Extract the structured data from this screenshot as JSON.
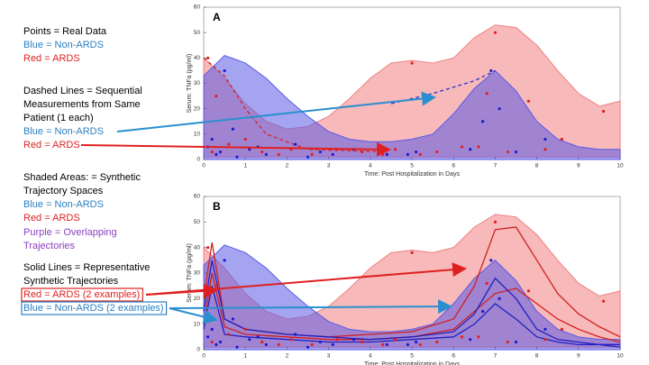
{
  "notes": [
    {
      "text": "Points = Real Data",
      "color": "#000000"
    },
    {
      "text": "Blue = Non-ARDS",
      "color": "#2a7fc1"
    },
    {
      "text": "Red = ARDS",
      "color": "#e02020"
    },
    {
      "text": "Dashed Lines = Sequential",
      "color": "#000000"
    },
    {
      "text": "Measurements from Same",
      "color": "#000000"
    },
    {
      "text": "Patient (1 each)",
      "color": "#000000"
    },
    {
      "text": "Blue = Non-ARDS",
      "color": "#2a7fc1"
    },
    {
      "text": "Red = ARDS",
      "color": "#e02020"
    },
    {
      "text": "Shaded Areas: = Synthetic",
      "color": "#000000"
    },
    {
      "text": "Trajectory Spaces",
      "color": "#000000"
    },
    {
      "text": "Blue = Non-ARDS",
      "color": "#2a7fc1"
    },
    {
      "text": "Red = ARDS",
      "color": "#e02020"
    },
    {
      "text": "Purple = Overlapping",
      "color": "#8a3fbf"
    },
    {
      "text": "Trajectories",
      "color": "#8a3fbf"
    },
    {
      "text": "Solid Lines = Representative",
      "color": "#000000"
    },
    {
      "text": "Synthetic Trajectories",
      "color": "#000000"
    },
    {
      "text": "Red = ARDS (2 examples)",
      "color": "#e02020",
      "boxed": true
    },
    {
      "text": "Blue = Non-ARDS (2 examples)",
      "color": "#2a7fc1",
      "boxed": true
    }
  ],
  "chart_data": [
    {
      "type": "area-scatter",
      "panel_label": "A",
      "xlabel": "Time: Post Hospitalization in Days",
      "ylabel": "Serum: TNFa (pg/ml)",
      "xlim": [
        0,
        10
      ],
      "ylim": [
        0,
        60
      ],
      "xticks": [
        0,
        1,
        2,
        3,
        4,
        5,
        6,
        7,
        8,
        9,
        10
      ],
      "yticks": [
        0,
        10,
        20,
        30,
        40,
        50,
        60
      ],
      "x": [
        0,
        0.5,
        1,
        1.5,
        2,
        2.5,
        3,
        3.5,
        4,
        4.5,
        5,
        5.5,
        6,
        6.5,
        7,
        7.5,
        8,
        8.5,
        9,
        9.5,
        10
      ],
      "areas": [
        {
          "color": "#f08080",
          "upper": [
            40,
            32,
            22,
            15,
            12,
            13,
            17,
            24,
            32,
            38,
            39,
            38,
            40,
            48,
            53,
            52,
            45,
            35,
            26,
            21,
            23
          ],
          "lower": [
            1,
            1,
            1,
            1,
            1,
            1,
            1,
            1,
            1,
            1,
            1,
            1,
            1,
            1,
            1,
            1,
            1,
            1,
            1,
            1,
            1
          ]
        },
        {
          "color": "#5a5ae6",
          "upper": [
            33,
            41,
            38,
            32,
            24,
            17,
            11,
            8,
            7,
            7,
            8,
            10,
            18,
            28,
            35,
            27,
            15,
            8,
            5,
            4,
            4
          ],
          "lower": [
            0,
            0,
            0,
            0,
            0,
            0,
            0,
            0,
            0,
            0,
            0,
            0,
            0,
            0,
            0,
            0,
            0,
            0,
            0,
            0,
            0
          ]
        }
      ],
      "points": [
        {
          "color": "#e02020",
          "x": [
            0.1,
            0.3,
            0.6,
            1.0,
            1.4,
            2.1,
            2.6,
            3.2,
            3.8,
            4.3,
            5.0,
            5.6,
            6.2,
            6.8,
            7.0,
            7.3,
            7.8,
            8.2,
            8.6,
            9.6,
            0.2,
            1.8,
            4.6,
            5.2,
            6.6
          ],
          "y": [
            40,
            25,
            6,
            8,
            3,
            4,
            2,
            4,
            3,
            2,
            38,
            3,
            5,
            26,
            50,
            3,
            23,
            4,
            8,
            19,
            3,
            2,
            4,
            2,
            5
          ]
        },
        {
          "color": "#1a1ad0",
          "x": [
            0.1,
            0.2,
            0.4,
            0.5,
            0.7,
            1.1,
            1.5,
            2.2,
            2.8,
            3.1,
            3.6,
            4.4,
            5.1,
            6.4,
            6.9,
            7.1,
            7.5,
            8.2,
            0.3,
            0.8,
            1.3,
            2.5,
            4.9,
            6.7
          ],
          "y": [
            5,
            8,
            3,
            35,
            12,
            4,
            2,
            6,
            3,
            2,
            4,
            2,
            3,
            4,
            35,
            20,
            3,
            8,
            2,
            1,
            5,
            1,
            2,
            15
          ]
        }
      ],
      "lines": [
        {
          "color": "#3030d0",
          "dashed": true,
          "x": [
            4.5,
            5.5,
            6.5,
            7.0
          ],
          "values": [
            22,
            26,
            31,
            35
          ]
        },
        {
          "color": "#e02020",
          "dashed": true,
          "x": [
            0,
            0.5,
            1,
            1.5,
            2.5,
            4.4
          ],
          "values": [
            40,
            33,
            20,
            10,
            4,
            3
          ]
        }
      ]
    },
    {
      "type": "area-scatter",
      "panel_label": "B",
      "xlabel": "Time: Post Hospitalization in Days",
      "ylabel": "Serum: TNFa (pg/ml)",
      "xlim": [
        0,
        10
      ],
      "ylim": [
        0,
        60
      ],
      "xticks": [
        0,
        1,
        2,
        3,
        4,
        5,
        6,
        7,
        8,
        9,
        10
      ],
      "yticks": [
        0,
        10,
        20,
        30,
        40,
        50,
        60
      ],
      "x": [
        0,
        0.5,
        1,
        1.5,
        2,
        2.5,
        3,
        3.5,
        4,
        4.5,
        5,
        5.5,
        6,
        6.5,
        7,
        7.5,
        8,
        8.5,
        9,
        9.5,
        10
      ],
      "areas": [
        {
          "color": "#f08080",
          "upper": [
            40,
            32,
            22,
            15,
            12,
            13,
            17,
            24,
            32,
            38,
            39,
            38,
            40,
            48,
            53,
            52,
            45,
            35,
            26,
            21,
            23
          ],
          "lower": [
            1,
            1,
            1,
            1,
            1,
            1,
            1,
            1,
            1,
            1,
            1,
            1,
            1,
            1,
            1,
            1,
            1,
            1,
            1,
            1,
            1
          ]
        },
        {
          "color": "#5a5ae6",
          "upper": [
            33,
            41,
            38,
            32,
            24,
            17,
            11,
            8,
            7,
            7,
            8,
            10,
            18,
            28,
            35,
            27,
            15,
            8,
            5,
            4,
            4
          ],
          "lower": [
            0,
            0,
            0,
            0,
            0,
            0,
            0,
            0,
            0,
            0,
            0,
            0,
            0,
            0,
            0,
            0,
            0,
            0,
            0,
            0,
            0
          ]
        }
      ],
      "points": [
        {
          "color": "#e02020",
          "x": [
            0.1,
            0.3,
            0.6,
            1.0,
            1.4,
            2.1,
            2.6,
            3.2,
            3.8,
            4.3,
            5.0,
            5.6,
            6.2,
            6.8,
            7.0,
            7.3,
            7.8,
            8.2,
            8.6,
            9.6,
            0.2,
            1.8,
            4.6,
            5.2,
            6.6
          ],
          "y": [
            40,
            25,
            6,
            8,
            3,
            4,
            2,
            4,
            3,
            2,
            38,
            3,
            5,
            26,
            50,
            3,
            23,
            4,
            8,
            19,
            3,
            2,
            4,
            2,
            5
          ]
        },
        {
          "color": "#1a1ad0",
          "x": [
            0.1,
            0.2,
            0.4,
            0.5,
            0.7,
            1.1,
            1.5,
            2.2,
            2.8,
            3.1,
            3.6,
            4.4,
            5.1,
            6.4,
            6.9,
            7.1,
            7.5,
            8.2,
            0.3,
            0.8,
            1.3,
            2.5,
            4.9,
            6.7
          ],
          "y": [
            5,
            8,
            3,
            35,
            12,
            4,
            2,
            6,
            3,
            2,
            4,
            2,
            3,
            4,
            35,
            20,
            3,
            8,
            2,
            1,
            5,
            1,
            2,
            15
          ]
        }
      ],
      "lines": [
        {
          "color": "#d02020",
          "dashed": false,
          "x": [
            0,
            0.2,
            0.5,
            1,
            2,
            3,
            4,
            5,
            6,
            6.5,
            7,
            7.5,
            8,
            8.5,
            9,
            9.5,
            10
          ],
          "values": [
            20,
            42,
            12,
            8,
            6,
            5,
            6,
            7,
            12,
            25,
            47,
            48,
            35,
            22,
            14,
            9,
            5
          ]
        },
        {
          "color": "#d02020",
          "dashed": false,
          "x": [
            0,
            0.2,
            0.5,
            1,
            2,
            3,
            4,
            5,
            6,
            6.5,
            7,
            7.5,
            8,
            8.5,
            9,
            9.5,
            10
          ],
          "values": [
            10,
            30,
            9,
            6,
            5,
            4,
            4,
            5,
            8,
            15,
            22,
            24,
            18,
            12,
            8,
            5,
            3
          ]
        },
        {
          "color": "#2020c0",
          "dashed": false,
          "x": [
            0,
            0.2,
            0.5,
            1,
            2,
            3,
            4,
            5,
            6,
            6.5,
            7,
            7.5,
            8,
            8.5,
            9,
            9.5,
            10
          ],
          "values": [
            15,
            35,
            12,
            8,
            6,
            5,
            4,
            5,
            7,
            14,
            28,
            20,
            8,
            4,
            3,
            2,
            2
          ]
        },
        {
          "color": "#2020c0",
          "dashed": false,
          "x": [
            0,
            0.2,
            0.5,
            1,
            2,
            3,
            4,
            5,
            6,
            6.5,
            7,
            7.5,
            8,
            8.5,
            9,
            9.5,
            10
          ],
          "values": [
            8,
            25,
            6,
            5,
            4,
            3,
            3,
            4,
            5,
            10,
            18,
            12,
            5,
            3,
            2,
            2,
            1
          ]
        }
      ]
    }
  ]
}
